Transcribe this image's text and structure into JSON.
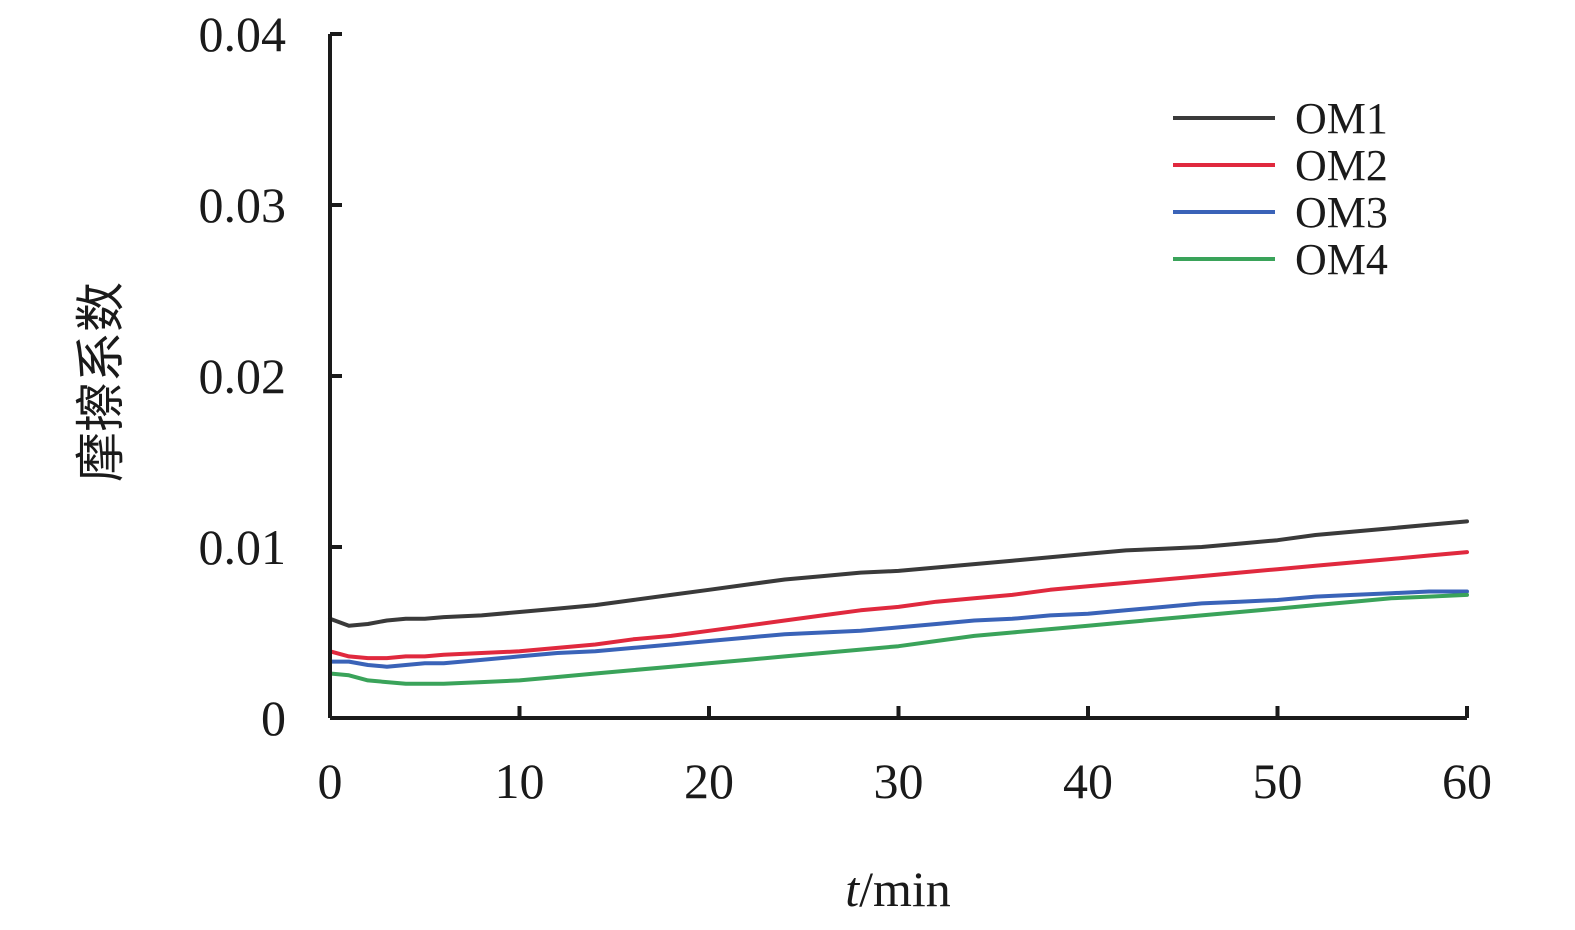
{
  "chart_data": {
    "type": "line",
    "title": "",
    "xlabel_italic": "t",
    "xlabel_rest": "/min",
    "ylabel": "摩擦系数",
    "xlim": [
      0,
      60
    ],
    "ylim": [
      0,
      0.04
    ],
    "x_ticks": [
      0,
      10,
      20,
      30,
      40,
      50,
      60
    ],
    "x_tick_labels": [
      "0",
      "10",
      "20",
      "30",
      "40",
      "50",
      "60"
    ],
    "y_ticks": [
      0,
      0.01,
      0.02,
      0.03,
      0.04
    ],
    "y_tick_labels": [
      "0",
      "0.01",
      "0.02",
      "0.03",
      "0.04"
    ],
    "grid": false,
    "legend_position": "top-right",
    "series": [
      {
        "name": "OM1",
        "color": "#3a3a3a",
        "x": [
          0,
          1,
          2,
          3,
          4,
          5,
          6,
          8,
          10,
          12,
          14,
          16,
          18,
          20,
          22,
          24,
          26,
          28,
          30,
          32,
          34,
          36,
          38,
          40,
          42,
          44,
          46,
          48,
          50,
          52,
          54,
          56,
          58,
          60
        ],
        "y": [
          0.0058,
          0.0054,
          0.0055,
          0.0057,
          0.0058,
          0.0058,
          0.0059,
          0.006,
          0.0062,
          0.0064,
          0.0066,
          0.0069,
          0.0072,
          0.0075,
          0.0078,
          0.0081,
          0.0083,
          0.0085,
          0.0086,
          0.0088,
          0.009,
          0.0092,
          0.0094,
          0.0096,
          0.0098,
          0.0099,
          0.01,
          0.0102,
          0.0104,
          0.0107,
          0.0109,
          0.0111,
          0.0113,
          0.0115
        ]
      },
      {
        "name": "OM2",
        "color": "#e0293e",
        "x": [
          0,
          1,
          2,
          3,
          4,
          5,
          6,
          8,
          10,
          12,
          14,
          16,
          18,
          20,
          22,
          24,
          26,
          28,
          30,
          32,
          34,
          36,
          38,
          40,
          42,
          44,
          46,
          48,
          50,
          52,
          54,
          56,
          58,
          60
        ],
        "y": [
          0.0039,
          0.0036,
          0.0035,
          0.0035,
          0.0036,
          0.0036,
          0.0037,
          0.0038,
          0.0039,
          0.0041,
          0.0043,
          0.0046,
          0.0048,
          0.0051,
          0.0054,
          0.0057,
          0.006,
          0.0063,
          0.0065,
          0.0068,
          0.007,
          0.0072,
          0.0075,
          0.0077,
          0.0079,
          0.0081,
          0.0083,
          0.0085,
          0.0087,
          0.0089,
          0.0091,
          0.0093,
          0.0095,
          0.0097
        ]
      },
      {
        "name": "OM3",
        "color": "#3a63b8",
        "x": [
          0,
          1,
          2,
          3,
          4,
          5,
          6,
          8,
          10,
          12,
          14,
          16,
          18,
          20,
          22,
          24,
          26,
          28,
          30,
          32,
          34,
          36,
          38,
          40,
          42,
          44,
          46,
          48,
          50,
          52,
          54,
          56,
          58,
          60
        ],
        "y": [
          0.0033,
          0.0033,
          0.0031,
          0.003,
          0.0031,
          0.0032,
          0.0032,
          0.0034,
          0.0036,
          0.0038,
          0.0039,
          0.0041,
          0.0043,
          0.0045,
          0.0047,
          0.0049,
          0.005,
          0.0051,
          0.0053,
          0.0055,
          0.0057,
          0.0058,
          0.006,
          0.0061,
          0.0063,
          0.0065,
          0.0067,
          0.0068,
          0.0069,
          0.0071,
          0.0072,
          0.0073,
          0.0074,
          0.0074
        ]
      },
      {
        "name": "OM4",
        "color": "#3aa35a",
        "x": [
          0,
          1,
          2,
          3,
          4,
          5,
          6,
          8,
          10,
          12,
          14,
          16,
          18,
          20,
          22,
          24,
          26,
          28,
          30,
          32,
          34,
          36,
          38,
          40,
          42,
          44,
          46,
          48,
          50,
          52,
          54,
          56,
          58,
          60
        ],
        "y": [
          0.0026,
          0.0025,
          0.0022,
          0.0021,
          0.002,
          0.002,
          0.002,
          0.0021,
          0.0022,
          0.0024,
          0.0026,
          0.0028,
          0.003,
          0.0032,
          0.0034,
          0.0036,
          0.0038,
          0.004,
          0.0042,
          0.0045,
          0.0048,
          0.005,
          0.0052,
          0.0054,
          0.0056,
          0.0058,
          0.006,
          0.0062,
          0.0064,
          0.0066,
          0.0068,
          0.007,
          0.0071,
          0.0072
        ]
      }
    ]
  }
}
